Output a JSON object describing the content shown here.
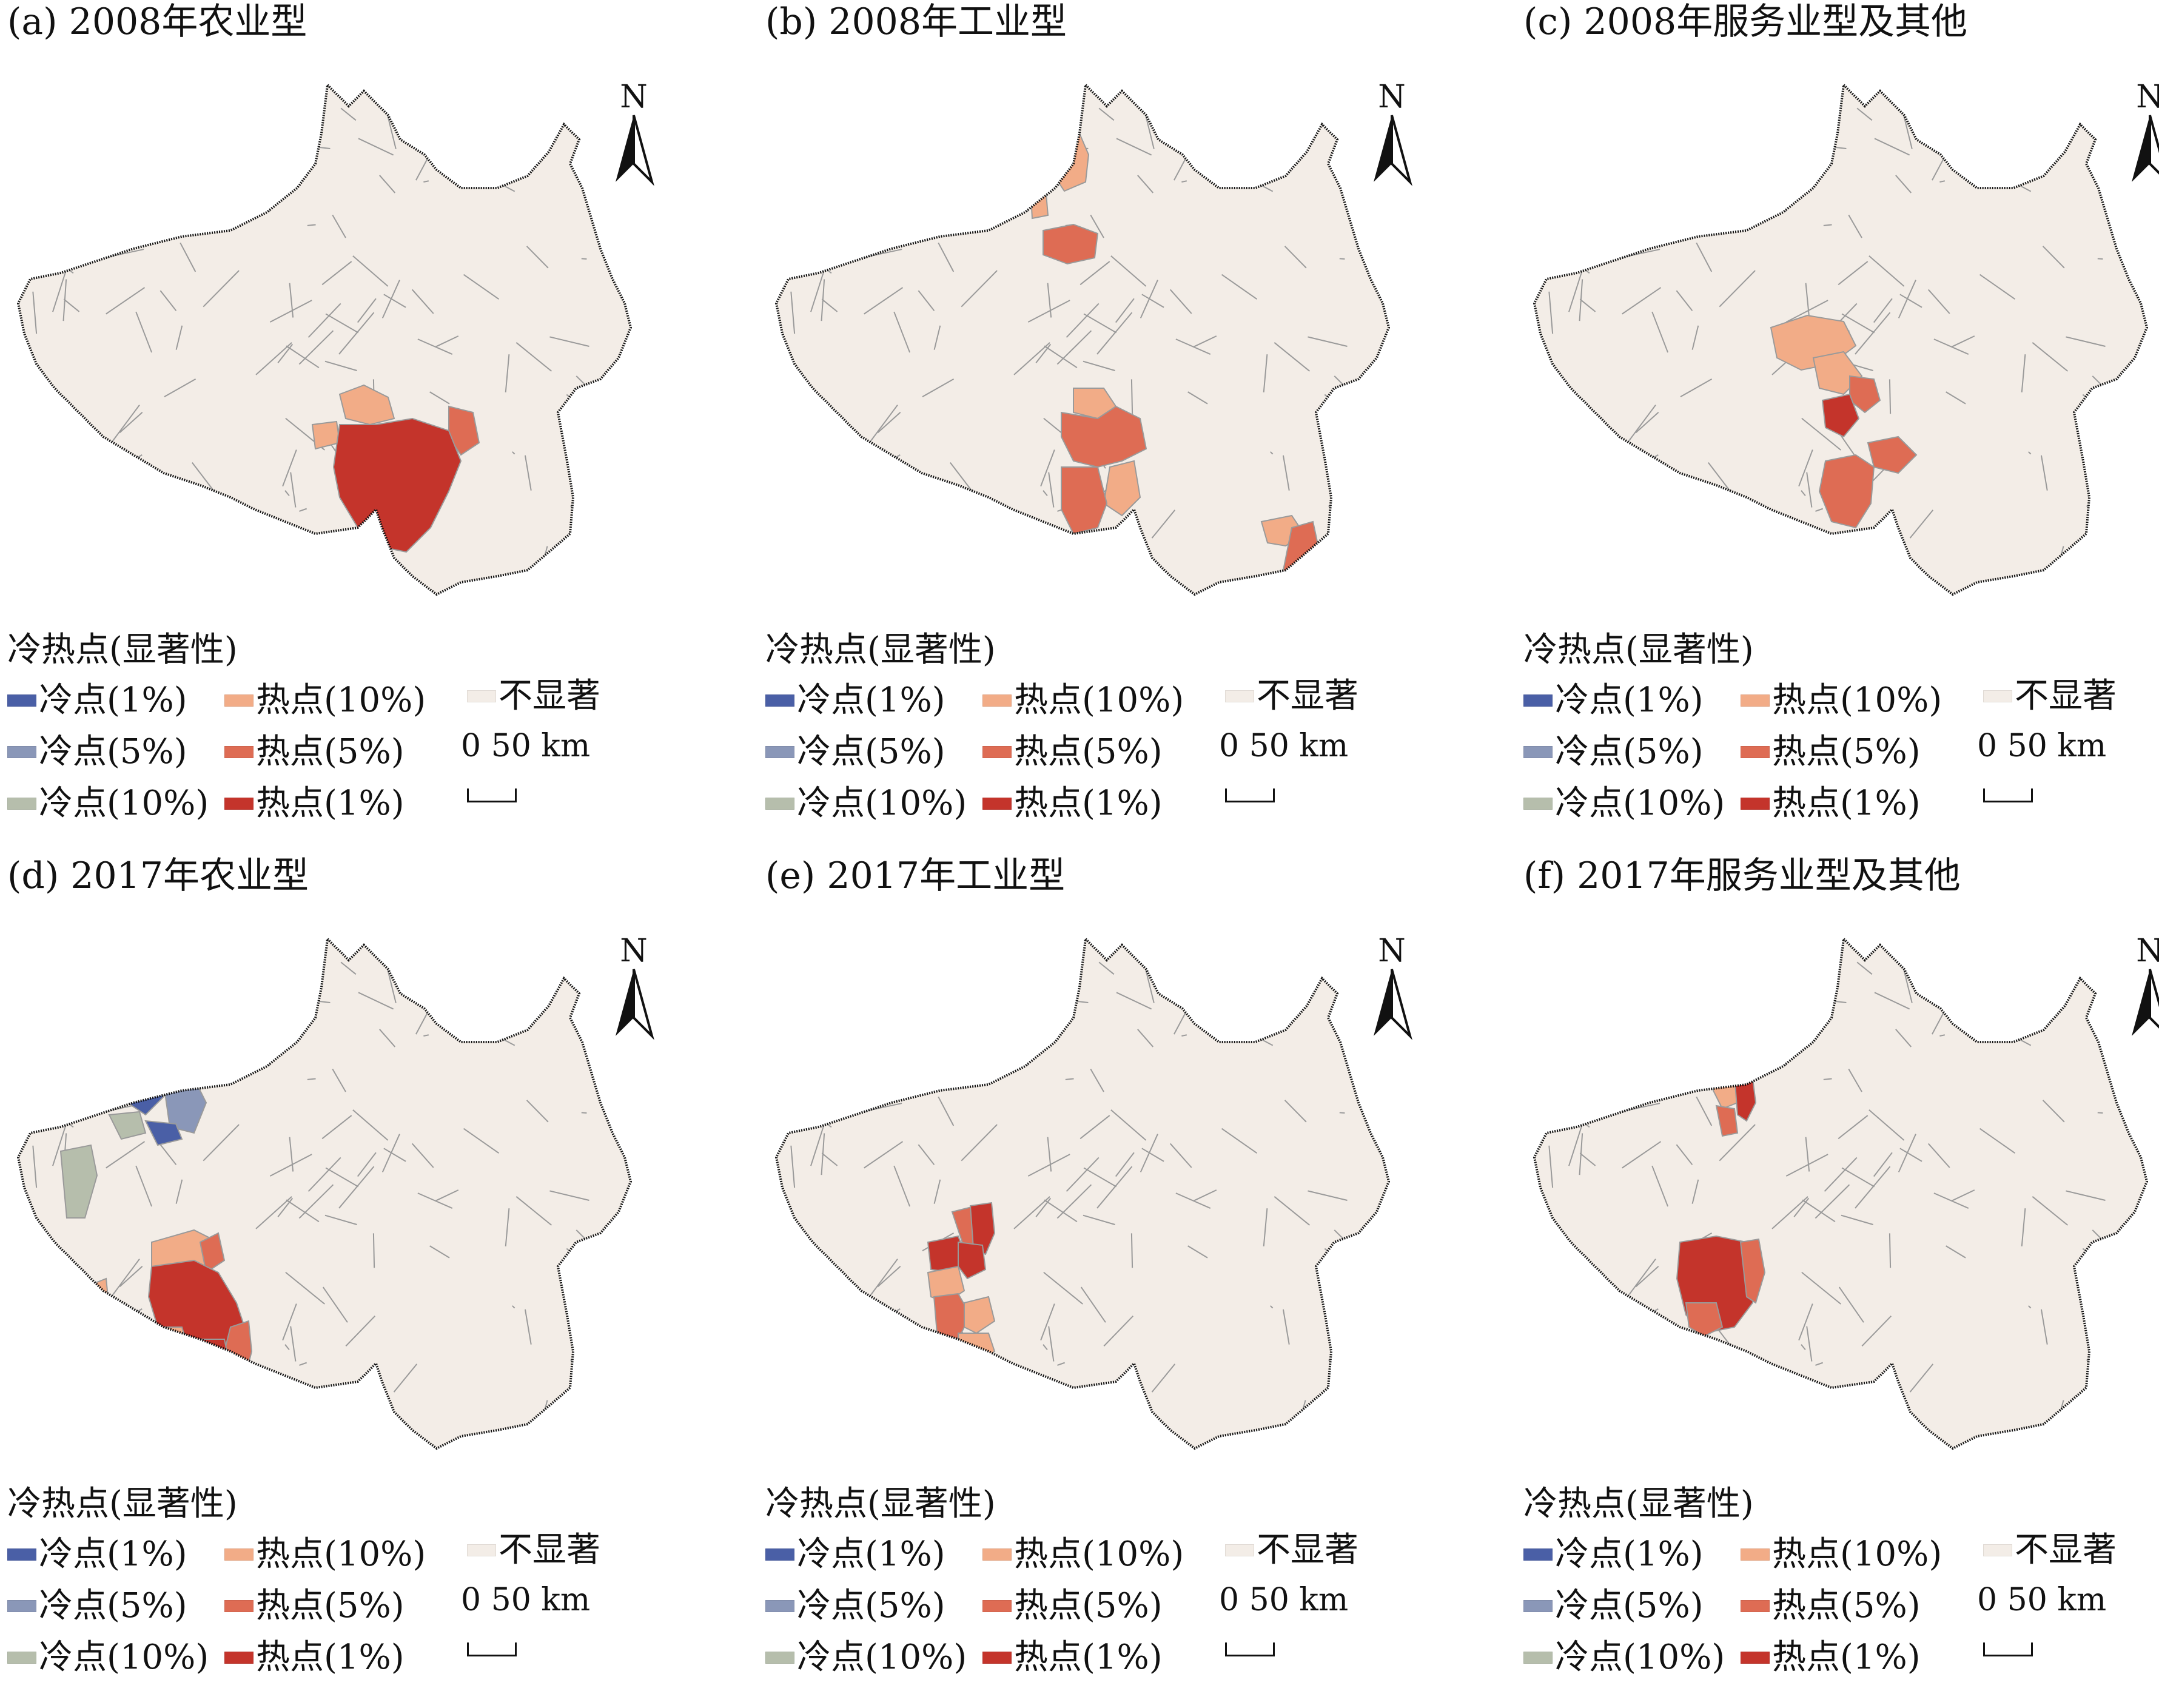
{
  "colors": {
    "base": "#f3ede7",
    "border": "#9a9a9a",
    "outline": "#111111",
    "cold_1": "#4a5fa6",
    "cold_5": "#8a97b8",
    "cold_10": "#b6beac",
    "hot_10": "#f2ac87",
    "hot_5": "#de6c54",
    "hot_1": "#c4342b"
  },
  "legend": {
    "title": "冷热点(显著性)",
    "items": [
      {
        "key": "cold_1",
        "label": "冷点(1%)"
      },
      {
        "key": "hot_10",
        "label": "热点(10%)"
      },
      {
        "key": "ns",
        "label": "不显著"
      },
      {
        "key": "cold_5",
        "label": "冷点(5%)"
      },
      {
        "key": "hot_5",
        "label": "热点(5%)"
      },
      {
        "key": "cold_10",
        "label": "冷点(10%)"
      },
      {
        "key": "hot_1",
        "label": "热点(1%)"
      }
    ]
  },
  "north_label": "N",
  "scale_label": "0   50 km",
  "panels": [
    {
      "id": "a",
      "title": "(a) 2008年农业型"
    },
    {
      "id": "b",
      "title": "(b) 2008年工业型"
    },
    {
      "id": "c",
      "title": "(c) 2008年服务业型及其他"
    },
    {
      "id": "d",
      "title": "(d) 2017年农业型"
    },
    {
      "id": "e",
      "title": "(e) 2017年工业型"
    },
    {
      "id": "f",
      "title": "(f) 2017年服务业型及其他"
    }
  ]
}
